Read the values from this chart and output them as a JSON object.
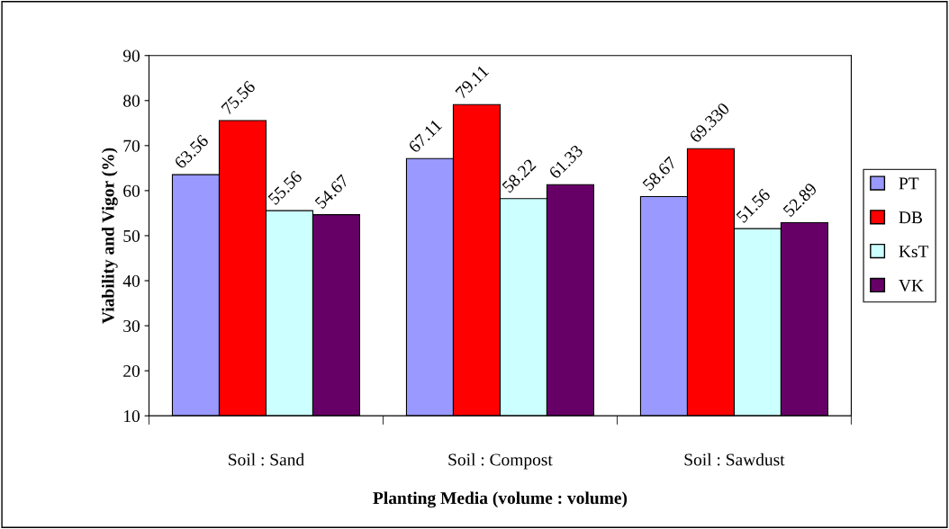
{
  "chart_data": {
    "type": "bar",
    "xlabel": "Planting Media (volume : volume)",
    "ylabel": "Viability and Vigor (%)",
    "categories": [
      "Soil : Sand",
      "Soil : Compost",
      "Soil : Sawdust"
    ],
    "series": [
      {
        "name": "PT",
        "color": "#9999ff",
        "values": [
          63.56,
          67.11,
          58.67
        ],
        "value_labels": [
          "63.56",
          "67.11",
          "58.67"
        ]
      },
      {
        "name": "DB",
        "color": "#ff0000",
        "values": [
          75.56,
          79.11,
          69.33
        ],
        "value_labels": [
          "75.56",
          "79.11",
          "69.330"
        ]
      },
      {
        "name": "KsT",
        "color": "#ccffff",
        "values": [
          55.56,
          58.22,
          51.56
        ],
        "value_labels": [
          "55.56",
          "58.22",
          "51.56"
        ]
      },
      {
        "name": "VK",
        "color": "#660066",
        "values": [
          54.67,
          61.33,
          52.89
        ],
        "value_labels": [
          "54.67",
          "61.33",
          "52.89"
        ]
      }
    ],
    "ylim": [
      10,
      90
    ],
    "yticks": [
      10,
      20,
      30,
      40,
      50,
      60,
      70,
      80,
      90
    ],
    "grid": false,
    "legend": "right"
  }
}
